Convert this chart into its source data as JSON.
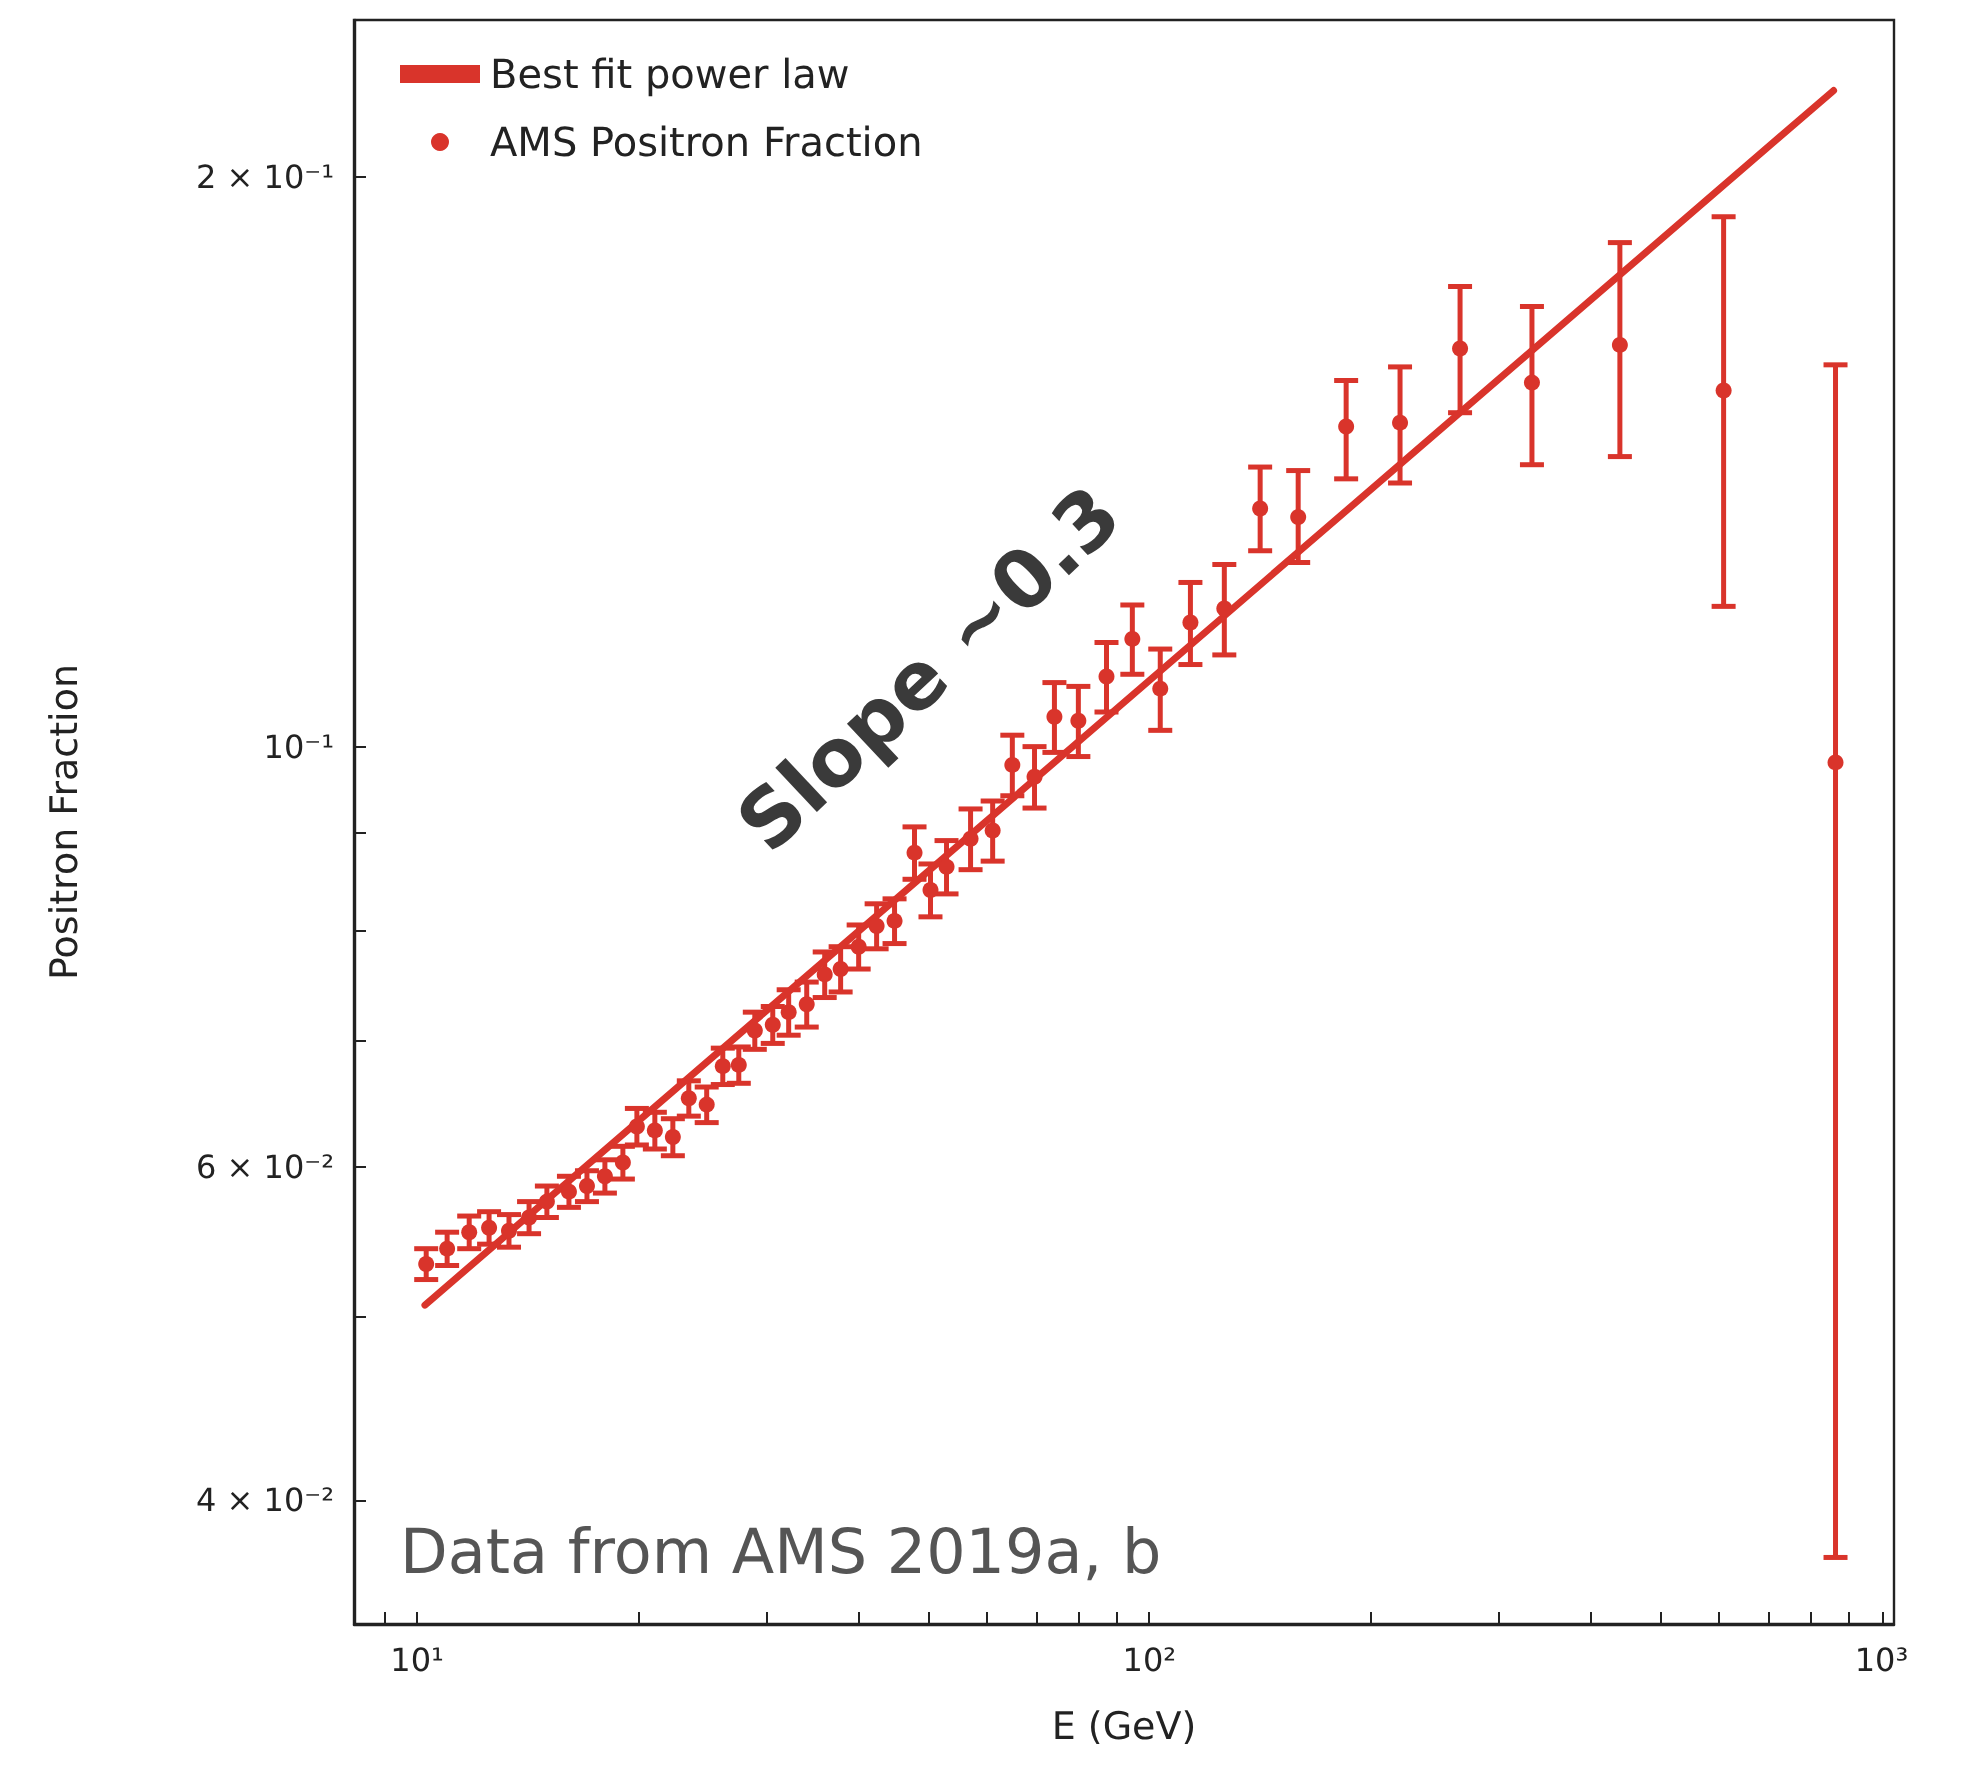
{
  "chart_data": {
    "type": "scatter",
    "xlabel": "E (GeV)",
    "ylabel": "Positron Fraction",
    "log": "xy",
    "grid": false,
    "legend": "top left",
    "xlim": [
      8.2,
      1040
    ],
    "ylim": [
      0.0344,
      0.242
    ],
    "xticks": [
      {
        "value": 9,
        "label": null
      },
      {
        "value": 10,
        "label": "10¹"
      },
      {
        "value": 20,
        "label": null
      },
      {
        "value": 30,
        "label": null
      },
      {
        "value": 40,
        "label": null
      },
      {
        "value": 50,
        "label": null
      },
      {
        "value": 60,
        "label": null
      },
      {
        "value": 70,
        "label": null
      },
      {
        "value": 80,
        "label": null
      },
      {
        "value": 90,
        "label": null
      },
      {
        "value": 100,
        "label": "10²"
      },
      {
        "value": 200,
        "label": null
      },
      {
        "value": 300,
        "label": null
      },
      {
        "value": 400,
        "label": null
      },
      {
        "value": 500,
        "label": null
      },
      {
        "value": 600,
        "label": null
      },
      {
        "value": 700,
        "label": null
      },
      {
        "value": 800,
        "label": null
      },
      {
        "value": 900,
        "label": null
      },
      {
        "value": 1000,
        "label": "10³"
      }
    ],
    "yticks": [
      {
        "value": 0.04,
        "label": "4 × 10⁻²"
      },
      {
        "value": 0.05,
        "label": null
      },
      {
        "value": 0.06,
        "label": "6 × 10⁻²"
      },
      {
        "value": 0.07,
        "label": null
      },
      {
        "value": 0.08,
        "label": null
      },
      {
        "value": 0.09,
        "label": null
      },
      {
        "value": 0.1,
        "label": "10⁻¹"
      },
      {
        "value": 0.2,
        "label": "2 × 10⁻¹"
      }
    ],
    "annotations": [
      "Slope ~0.3",
      "Data from AMS 2019a, b"
    ],
    "series": [
      {
        "name": "Best fit power law",
        "type": "line",
        "color": "#d9342b",
        "marker": "none",
        "x": [
          10.25,
          860
        ],
        "values": [
          0.0507,
          0.2221
        ]
      },
      {
        "name": "AMS Positron Fraction",
        "color": "#d9342b",
        "marker": "circle",
        "x": [
          10.29,
          10.99,
          11.78,
          12.54,
          13.35,
          14.22,
          15.04,
          16.12,
          17.06,
          18.05,
          19.1,
          19.96,
          21.12,
          22.35,
          23.5,
          24.86,
          26.15,
          27.5,
          28.92,
          30.6,
          32.17,
          34.05,
          36.03,
          37.88,
          40.09,
          42.42,
          44.88,
          47.79,
          50.25,
          52.85,
          57.0,
          61.1,
          65.0,
          69.7,
          74.2,
          80.0,
          87.4,
          94.8,
          103.5,
          113.8,
          126.6,
          141.7,
          159.7,
          185.7,
          220.0,
          265.7,
          333.1,
          439.2,
          608.6,
          865.3
        ],
        "values": [
          0.0533,
          0.0543,
          0.0554,
          0.0557,
          0.0555,
          0.0564,
          0.0575,
          0.0582,
          0.0586,
          0.0593,
          0.0603,
          0.063,
          0.0627,
          0.0622,
          0.0652,
          0.0647,
          0.0678,
          0.0679,
          0.0708,
          0.0713,
          0.0724,
          0.0731,
          0.0758,
          0.0763,
          0.0784,
          0.0804,
          0.0809,
          0.0879,
          0.084,
          0.0864,
          0.0894,
          0.0903,
          0.0978,
          0.0964,
          0.1037,
          0.1032,
          0.1089,
          0.114,
          0.1073,
          0.1163,
          0.1183,
          0.1336,
          0.1322,
          0.1476,
          0.1483,
          0.1623,
          0.1557,
          0.163,
          0.1542,
          0.0981
        ],
        "errors": [
          0.001,
          0.0011,
          0.0011,
          0.0011,
          0.0011,
          0.0011,
          0.0011,
          0.0011,
          0.0011,
          0.0012,
          0.0012,
          0.0014,
          0.0014,
          0.0014,
          0.0014,
          0.0014,
          0.0015,
          0.0015,
          0.0016,
          0.0016,
          0.002,
          0.002,
          0.0021,
          0.0021,
          0.0021,
          0.0022,
          0.0022,
          0.0028,
          0.0027,
          0.0028,
          0.0033,
          0.0033,
          0.0036,
          0.0036,
          0.0044,
          0.0044,
          0.0046,
          0.0048,
          0.0053,
          0.0058,
          0.0065,
          [
            0.1269,
            0.1405
          ],
          [
            0.1251,
            0.1399
          ],
          [
            0.1385,
            0.1561
          ],
          [
            0.1378,
            0.1587
          ],
          [
            0.1501,
            0.175
          ],
          [
            0.1409,
            0.1708
          ],
          [
            0.1423,
            0.1846
          ],
          [
            0.1186,
            0.1905
          ],
          [
            0.0373,
            0.1591
          ]
        ]
      }
    ]
  }
}
